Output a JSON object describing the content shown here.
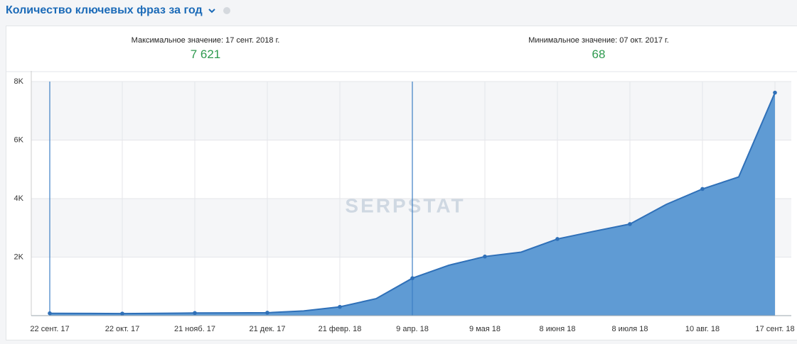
{
  "header": {
    "title": "Количество ключевых фраз за год"
  },
  "stats": [
    {
      "label": "Максимальное значение: 17 сент. 2018 г.",
      "value": "7 621"
    },
    {
      "label": "Минимальное значение: 07 окт. 2017 г.",
      "value": "68"
    }
  ],
  "chart_data": {
    "type": "area",
    "categories": [
      "22 сент. 17",
      null,
      "22 окт. 17",
      null,
      "21 нояб. 17",
      null,
      "21 дек. 17",
      null,
      "21 февр. 18",
      null,
      "9 апр. 18",
      null,
      "9 мая 18",
      null,
      "8 июня 18",
      null,
      "8 июля 18",
      null,
      "10 авг. 18",
      null,
      "17 сент. 18"
    ],
    "values": [
      80,
      75,
      70,
      80,
      90,
      95,
      100,
      160,
      300,
      580,
      1280,
      1720,
      2020,
      2170,
      2620,
      2880,
      3130,
      3800,
      4330,
      4740,
      7621
    ],
    "ylim": [
      0,
      8000
    ],
    "yticks": [
      {
        "value": 2000,
        "label": "2K"
      },
      {
        "value": 4000,
        "label": "4K"
      },
      {
        "value": 6000,
        "label": "6K"
      },
      {
        "value": 8000,
        "label": "8K"
      }
    ],
    "grid": true,
    "color": "#5f9bd4",
    "line_color": "#2f70b8",
    "watermark": "SERPSTAT"
  }
}
